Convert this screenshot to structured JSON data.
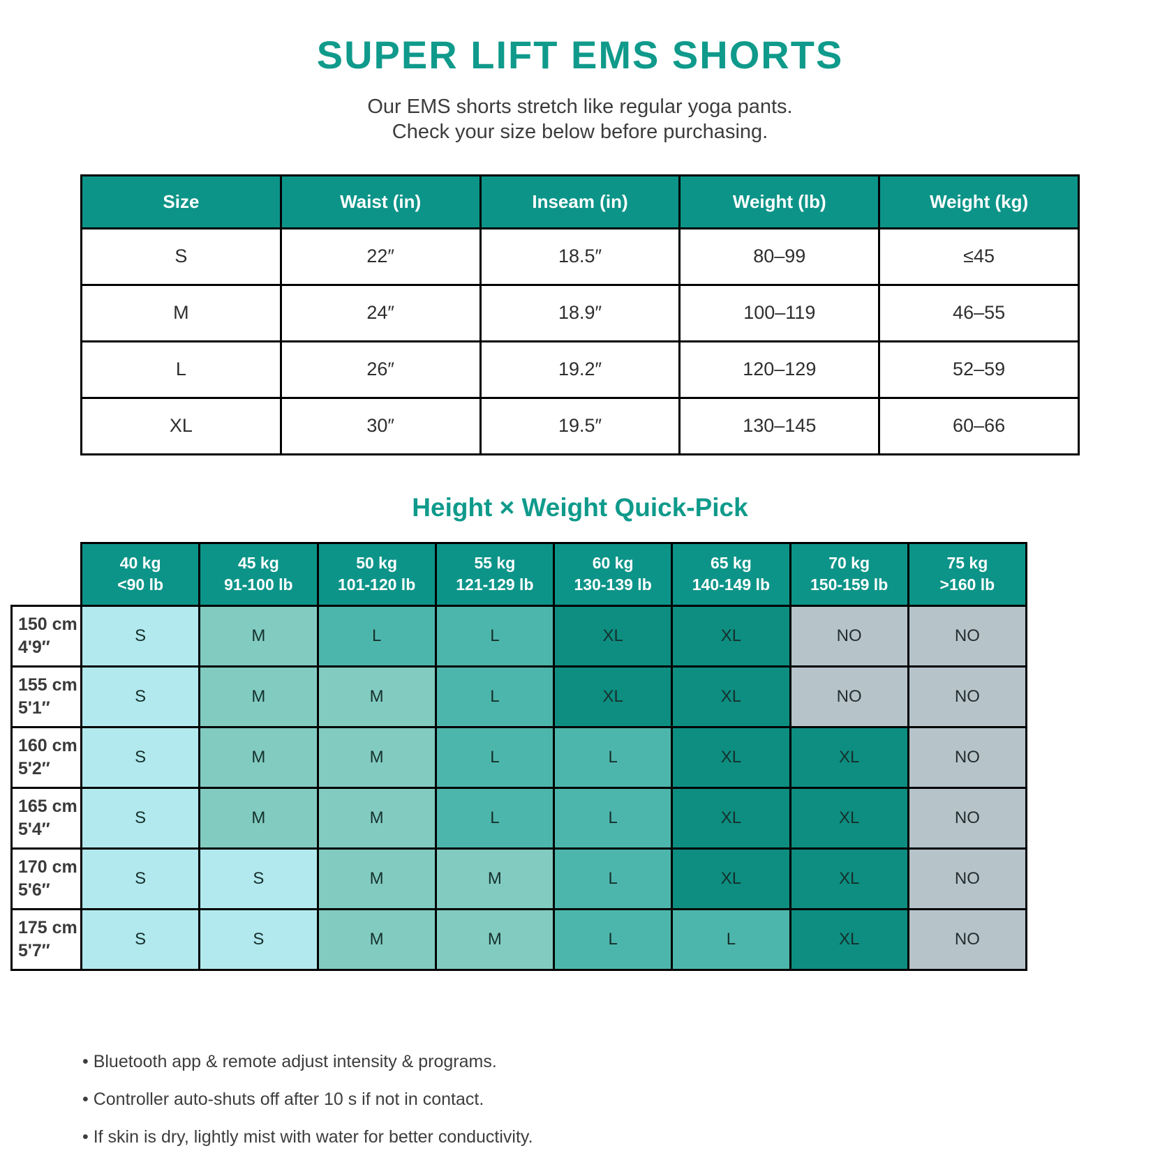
{
  "page": {
    "title": "SUPER LIFT EMS SHORTS",
    "subtitle_line1": "Our EMS shorts stretch like regular yoga pants.",
    "subtitle_line2": "Check your size below before purchasing."
  },
  "size_table": {
    "headers": [
      "Size",
      "Waist (in)",
      "Inseam (in)",
      "Weight (lb)",
      "Weight (kg)"
    ],
    "rows": [
      [
        "S",
        "22″",
        "18.5″",
        "80–99",
        "≤45"
      ],
      [
        "M",
        "24″",
        "18.9″",
        "100–119",
        "46–55"
      ],
      [
        "L",
        "26″",
        "19.2″",
        "120–129",
        "52–59"
      ],
      [
        "XL",
        "30″",
        "19.5″",
        "130–145",
        "60–66"
      ]
    ]
  },
  "quickpick": {
    "heading": "Height × Weight Quick-Pick",
    "col_headers": [
      {
        "kg": "40 kg",
        "lb": "<90 lb"
      },
      {
        "kg": "45 kg",
        "lb": "91-100 lb"
      },
      {
        "kg": "50 kg",
        "lb": "101-120 lb"
      },
      {
        "kg": "55 kg",
        "lb": "121-129 lb"
      },
      {
        "kg": "60 kg",
        "lb": "130-139 lb"
      },
      {
        "kg": "65 kg",
        "lb": "140-149 lb"
      },
      {
        "kg": "70 kg",
        "lb": "150-159 lb"
      },
      {
        "kg": "75 kg",
        "lb": ">160 lb"
      }
    ],
    "row_headers": [
      {
        "cm": "150 cm",
        "ft": "4'9″"
      },
      {
        "cm": "155 cm",
        "ft": "5'1″"
      },
      {
        "cm": "160 cm",
        "ft": "5'2″"
      },
      {
        "cm": "165 cm",
        "ft": "5'4″"
      },
      {
        "cm": "170 cm",
        "ft": "5'6″"
      },
      {
        "cm": "175 cm",
        "ft": "5'7″"
      }
    ],
    "cells": [
      [
        "S",
        "M",
        "L",
        "L",
        "XL",
        "XL",
        "NO",
        "NO"
      ],
      [
        "S",
        "M",
        "M",
        "L",
        "XL",
        "XL",
        "NO",
        "NO"
      ],
      [
        "S",
        "M",
        "M",
        "L",
        "L",
        "XL",
        "XL",
        "NO"
      ],
      [
        "S",
        "M",
        "M",
        "L",
        "L",
        "XL",
        "XL",
        "NO"
      ],
      [
        "S",
        "S",
        "M",
        "M",
        "L",
        "XL",
        "XL",
        "NO"
      ],
      [
        "S",
        "S",
        "M",
        "M",
        "L",
        "L",
        "XL",
        "NO"
      ]
    ]
  },
  "notes": [
    "Bluetooth app & remote adjust intensity & programs.",
    "Controller auto-shuts off after 10 s if not in contact.",
    "If skin is dry, lightly mist with water for better conductivity."
  ],
  "colors": {
    "accent": "#0d9488",
    "heading": "#0f9a8b",
    "cell_s": "#b2e9ee",
    "cell_m": "#82cbc1",
    "cell_l": "#4db6ac",
    "cell_xl": "#0d8e81",
    "cell_no": "#b6c4ca"
  }
}
